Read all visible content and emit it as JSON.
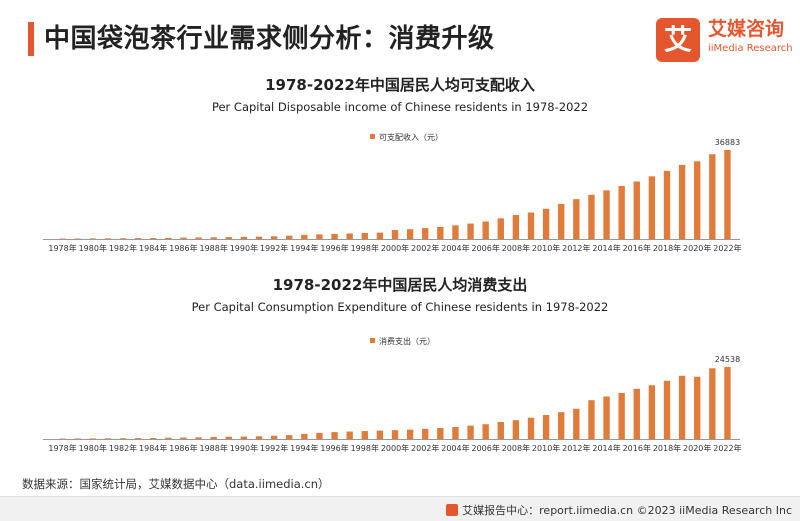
{
  "header": {
    "title": "中国袋泡茶行业需求侧分析：消费升级",
    "logo_mark": "艾",
    "logo_name": "艾媒咨询",
    "logo_sub": "iiMedia Research",
    "accent_color": "#e4572e"
  },
  "chart_data": [
    {
      "type": "bar",
      "title": "1978-2022年中国居民人均可支配收入",
      "subtitle": "Per Capital Disposable income of Chinese residents in 1978-2022",
      "legend": "可支配收入（元）",
      "color": "#e07b39",
      "categories": [
        "1978年",
        "1979年",
        "1980年",
        "1981年",
        "1982年",
        "1983年",
        "1984年",
        "1985年",
        "1986年",
        "1987年",
        "1988年",
        "1989年",
        "1990年",
        "1991年",
        "1992年",
        "1993年",
        "1994年",
        "1995年",
        "1996年",
        "1997年",
        "1998年",
        "1999年",
        "2000年",
        "2001年",
        "2002年",
        "2003年",
        "2004年",
        "2005年",
        "2006年",
        "2007年",
        "2008年",
        "2009年",
        "2010年",
        "2011年",
        "2012年",
        "2013年",
        "2014年",
        "2015年",
        "2016年",
        "2017年",
        "2018年",
        "2019年",
        "2020年",
        "2021年",
        "2022年"
      ],
      "tick_labels": [
        "1978年",
        "1980年",
        "1982年",
        "1984年",
        "1986年",
        "1988年",
        "1990年",
        "1992年",
        "1994年",
        "1996年",
        "1998年",
        "2000年",
        "2002年",
        "2004年",
        "2006年",
        "2008年",
        "2010年",
        "2012年",
        "2014年",
        "2016年",
        "2018年",
        "2020年",
        "2022年"
      ],
      "values": [
        171,
        183,
        247,
        270,
        301,
        360,
        399,
        478,
        560,
        630,
        706,
        790,
        904,
        976,
        1125,
        1385,
        1710,
        1900,
        2100,
        2300,
        2500,
        2650,
        3720,
        4070,
        4530,
        5010,
        5660,
        6380,
        7230,
        8580,
        9960,
        10980,
        12520,
        14550,
        16510,
        18310,
        20167,
        21966,
        23821,
        25974,
        28228,
        30733,
        32189,
        35128,
        36883
      ],
      "data_labels": [
        {
          "category": "2022年",
          "text": "36883"
        }
      ]
    },
    {
      "type": "bar",
      "title": "1978-2022年中国居民人均消费支出",
      "subtitle": "Per Capital Consumption Expenditure of Chinese residents in 1978-2022",
      "legend": "消费支出（元）",
      "color": "#e07b39",
      "categories": [
        "1978年",
        "1979年",
        "1980年",
        "1981年",
        "1982年",
        "1983年",
        "1984年",
        "1985年",
        "1986年",
        "1987年",
        "1988年",
        "1989年",
        "1990年",
        "1991年",
        "1992年",
        "1993年",
        "1994年",
        "1995年",
        "1996年",
        "1997年",
        "1998年",
        "1999年",
        "2000年",
        "2001年",
        "2002年",
        "2003年",
        "2004年",
        "2005年",
        "2006年",
        "2007年",
        "2008年",
        "2009年",
        "2010年",
        "2011年",
        "2012年",
        "2013年",
        "2014年",
        "2015年",
        "2016年",
        "2017年",
        "2018年",
        "2019年",
        "2020年",
        "2021年",
        "2022年"
      ],
      "tick_labels": [
        "1978年",
        "1980年",
        "1982年",
        "1984年",
        "1986年",
        "1988年",
        "1990年",
        "1992年",
        "1994年",
        "1996年",
        "1998年",
        "2000年",
        "2002年",
        "2004年",
        "2006年",
        "2008年",
        "2010年",
        "2012年",
        "2014年",
        "2016年",
        "2018年",
        "2020年",
        "2022年"
      ],
      "values": [
        151,
        162,
        202,
        232,
        255,
        290,
        340,
        436,
        497,
        565,
        714,
        788,
        833,
        932,
        1116,
        1331,
        1746,
        2080,
        2350,
        2550,
        2700,
        2850,
        3010,
        3200,
        3460,
        3750,
        4080,
        4550,
        5040,
        5800,
        6420,
        7250,
        8160,
        9150,
        10300,
        13220,
        14491,
        15712,
        17111,
        18322,
        19853,
        21559,
        21210,
        24100,
        24538
      ],
      "data_labels": [
        {
          "category": "2022年",
          "text": "24538"
        }
      ]
    }
  ],
  "source": "数据来源：国家统计局，艾媒数据中心（data.iimedia.cn）",
  "footer": {
    "text": "艾媒报告中心：report.iimedia.cn  ©2023  iiMedia Research Inc"
  }
}
